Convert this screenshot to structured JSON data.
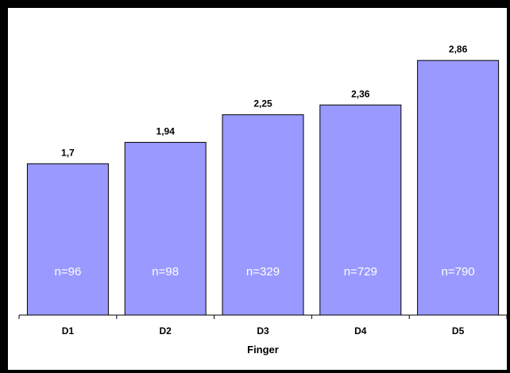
{
  "chart_data": {
    "type": "bar",
    "title": "",
    "xlabel": "Finger",
    "ylabel": "",
    "categories": [
      "D1",
      "D2",
      "D3",
      "D4",
      "D5"
    ],
    "values": [
      1.7,
      1.94,
      2.25,
      2.36,
      2.86
    ],
    "value_labels": [
      "1,7",
      "1,94",
      "2,25",
      "2,36",
      "2,86"
    ],
    "sample_labels": [
      "n=96",
      "n=98",
      "n=329",
      "n=729",
      "n=790"
    ],
    "ylim": [
      0,
      3.45
    ],
    "grid": false,
    "legend": "none",
    "colors": {
      "bar_fill": "#9999ff",
      "bar_stroke": "#000000",
      "sample_text": "#ffffff",
      "frame": "#000000"
    }
  }
}
